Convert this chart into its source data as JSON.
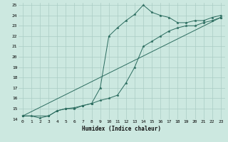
{
  "xlabel": "Humidex (Indice chaleur)",
  "bg_color": "#cce8e0",
  "grid_color": "#aaccc4",
  "line_color": "#2a6b5e",
  "xlim": [
    -0.5,
    23.5
  ],
  "ylim": [
    14,
    25.2
  ],
  "xticks": [
    0,
    1,
    2,
    3,
    4,
    5,
    6,
    7,
    8,
    9,
    10,
    11,
    12,
    13,
    14,
    15,
    16,
    17,
    18,
    19,
    20,
    21,
    22,
    23
  ],
  "yticks": [
    14,
    15,
    16,
    17,
    18,
    19,
    20,
    21,
    22,
    23,
    24,
    25
  ],
  "series1_x": [
    0,
    1,
    2,
    3,
    4,
    5,
    6,
    7,
    8,
    9,
    10,
    11,
    12,
    13,
    14,
    15,
    16,
    17,
    18,
    19,
    20,
    21,
    22,
    23
  ],
  "series1_y": [
    14.3,
    14.3,
    14.1,
    14.3,
    14.8,
    15.0,
    15.0,
    15.3,
    15.5,
    17.0,
    22.0,
    22.8,
    23.5,
    24.1,
    25.0,
    24.3,
    24.0,
    23.8,
    23.3,
    23.3,
    23.5,
    23.5,
    23.8,
    24.0
  ],
  "series2_x": [
    0,
    3,
    4,
    5,
    6,
    7,
    8,
    9,
    10,
    11,
    12,
    13,
    14,
    15,
    16,
    17,
    18,
    19,
    20,
    21,
    22,
    23
  ],
  "series2_y": [
    14.3,
    14.3,
    14.8,
    15.0,
    15.1,
    15.3,
    15.5,
    15.8,
    16.0,
    16.3,
    17.5,
    19.0,
    21.0,
    21.5,
    22.0,
    22.5,
    22.8,
    23.0,
    23.0,
    23.3,
    23.5,
    23.8
  ],
  "series3_x": [
    0,
    23
  ],
  "series3_y": [
    14.3,
    23.8
  ],
  "marker": "*",
  "markersize": 2.5,
  "linewidth": 0.7,
  "tick_fontsize": 4.5,
  "xlabel_fontsize": 5.5
}
